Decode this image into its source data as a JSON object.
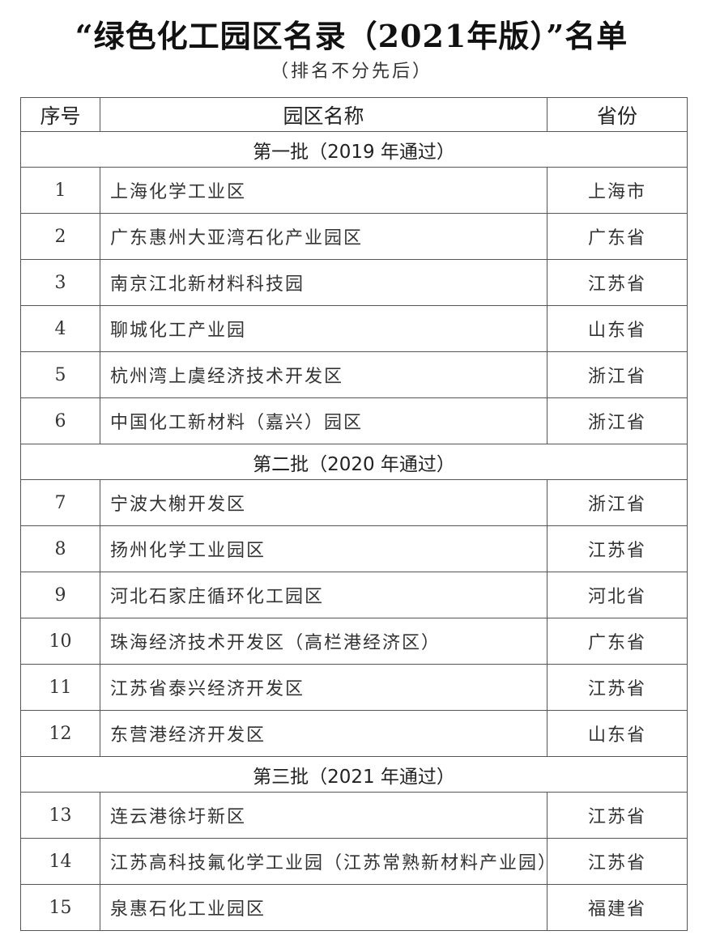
{
  "title": "“绿色化工园区名录（2021年版）”名单",
  "subtitle": "（排名不分先后）",
  "table": {
    "headers": [
      "序号",
      "园区名称",
      "省份"
    ],
    "batches": [
      {
        "label": "第一批（2019 年通过）",
        "rows": [
          {
            "no": "1",
            "name": "上海化学工业区",
            "province": "上海市"
          },
          {
            "no": "2",
            "name": "广东惠州大亚湾石化产业园区",
            "province": "广东省"
          },
          {
            "no": "3",
            "name": "南京江北新材料科技园",
            "province": "江苏省"
          },
          {
            "no": "4",
            "name": "聊城化工产业园",
            "province": "山东省"
          },
          {
            "no": "5",
            "name": "杭州湾上虞经济技术开发区",
            "province": "浙江省"
          },
          {
            "no": "6",
            "name": "中国化工新材料（嘉兴）园区",
            "province": "浙江省"
          }
        ]
      },
      {
        "label": "第二批（2020 年通过）",
        "rows": [
          {
            "no": "7",
            "name": "宁波大榭开发区",
            "province": "浙江省"
          },
          {
            "no": "8",
            "name": "扬州化学工业园区",
            "province": "江苏省"
          },
          {
            "no": "9",
            "name": "河北石家庄循环化工园区",
            "province": "河北省"
          },
          {
            "no": "10",
            "name": "珠海经济技术开发区（高栏港经济区）",
            "province": "广东省"
          },
          {
            "no": "11",
            "name": "江苏省泰兴经济开发区",
            "province": "江苏省"
          },
          {
            "no": "12",
            "name": "东营港经济开发区",
            "province": "山东省"
          }
        ]
      },
      {
        "label": "第三批（2021 年通过）",
        "rows": [
          {
            "no": "13",
            "name": "连云港徐圩新区",
            "province": "江苏省"
          },
          {
            "no": "14",
            "name": "江苏高科技氟化学工业园（江苏常熟新材料产业园）",
            "province": "江苏省"
          },
          {
            "no": "15",
            "name": "泉惠石化工业园区",
            "province": "福建省"
          }
        ]
      }
    ]
  }
}
